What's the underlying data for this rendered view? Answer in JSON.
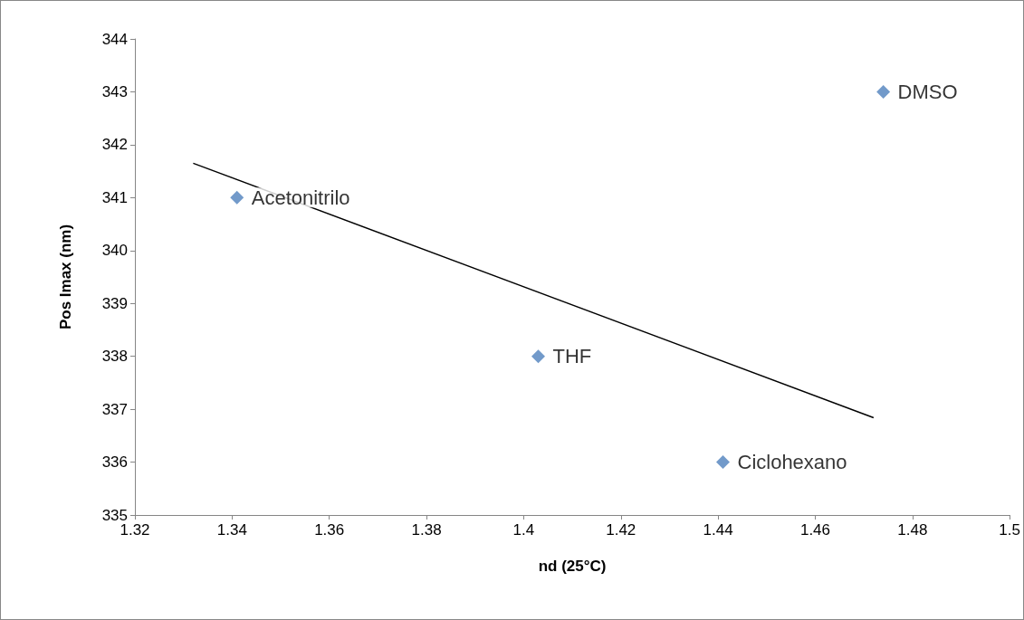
{
  "chart_data": {
    "type": "scatter",
    "xlabel": "nd (25°C)",
    "ylabel": "Pos Imax (nm)",
    "series": [
      {
        "color": "#4f81bd",
        "marker": "diamond",
        "x": [
          1.341,
          1.403,
          1.441,
          1.474
        ],
        "values": [
          341,
          338,
          336,
          343
        ]
      },
      {
        "type": "line",
        "color": "#000000",
        "marker": "none",
        "line_style": "solid",
        "x": [
          1.332,
          1.472
        ],
        "values": [
          341.65,
          336.84
        ]
      }
    ],
    "annotations": [
      {
        "text": "Acetonitrilo",
        "x": 1.341,
        "y": 341
      },
      {
        "text": "THF",
        "x": 1.403,
        "y": 338
      },
      {
        "text": "Ciclohexano",
        "x": 1.441,
        "y": 336
      },
      {
        "text": "DMSO",
        "x": 1.474,
        "y": 343
      }
    ],
    "xlim": [
      1.32,
      1.5
    ],
    "xticks": [
      1.32,
      1.34,
      1.36,
      1.38,
      1.4,
      1.42,
      1.44,
      1.46,
      1.48,
      1.5
    ],
    "ylim": [
      335,
      344
    ],
    "yticks": [
      335,
      336,
      337,
      338,
      339,
      340,
      341,
      342,
      343,
      344
    ],
    "grid": false
  }
}
